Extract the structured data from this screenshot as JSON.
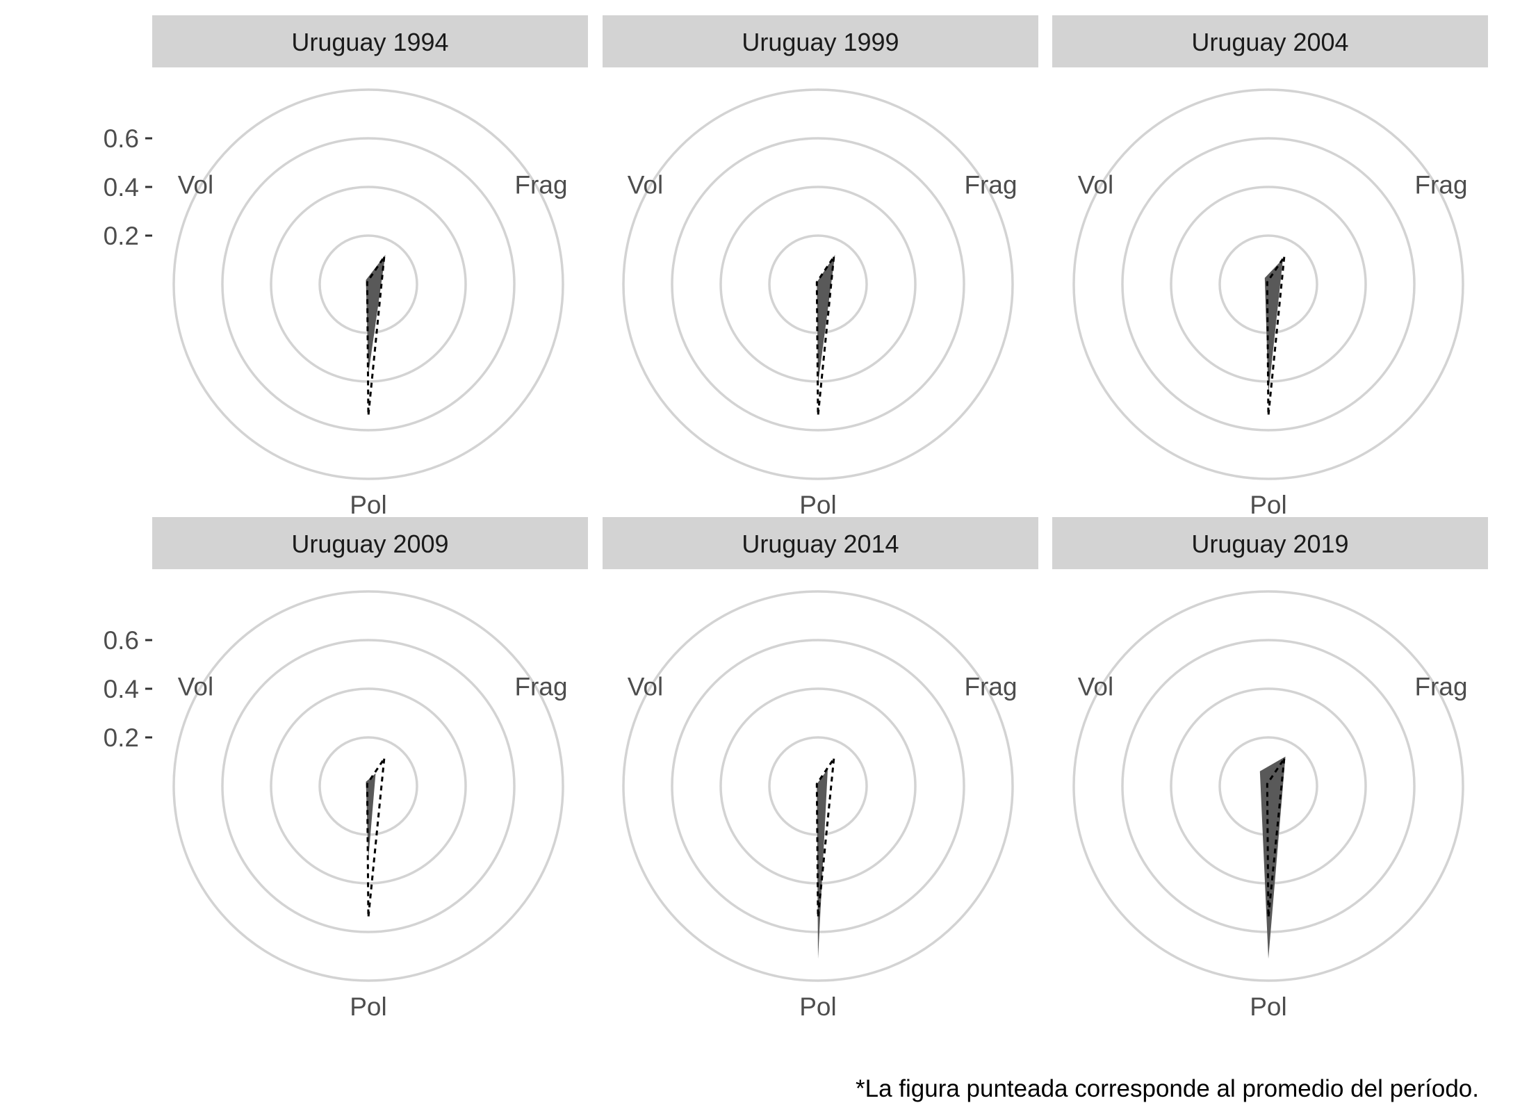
{
  "chart_data": {
    "type": "radar",
    "axes": [
      "Frag",
      "Pol",
      "Vol"
    ],
    "r_ticks": [
      "0.2",
      "0.4",
      "0.6"
    ],
    "rlim": [
      0,
      0.8
    ],
    "grid": true,
    "legend": "none",
    "caption": "*La figura punteada corresponde al promedio del período.",
    "colors": {
      "fill": "#595959",
      "grid": "#d3d3d3",
      "strip": "#d3d3d3",
      "average_line": "#000000"
    },
    "average": {
      "Frag": 0.13,
      "Pol": 0.54,
      "Vol": 0.01
    },
    "panels": [
      {
        "title": "Uruguay 1994",
        "values": {
          "Frag": 0.14,
          "Pol": 0.37,
          "Vol": 0.02
        }
      },
      {
        "title": "Uruguay 1999",
        "values": {
          "Frag": 0.14,
          "Pol": 0.41,
          "Vol": 0.01
        }
      },
      {
        "title": "Uruguay 2004",
        "values": {
          "Frag": 0.12,
          "Pol": 0.45,
          "Vol": 0.03
        }
      },
      {
        "title": "Uruguay 2009",
        "values": {
          "Frag": 0.06,
          "Pol": 0.3,
          "Vol": 0.02
        }
      },
      {
        "title": "Uruguay 2014",
        "values": {
          "Frag": 0.08,
          "Pol": 0.71,
          "Vol": 0.01
        }
      },
      {
        "title": "Uruguay 2019",
        "values": {
          "Frag": 0.14,
          "Pol": 0.71,
          "Vol": 0.07
        }
      }
    ]
  }
}
